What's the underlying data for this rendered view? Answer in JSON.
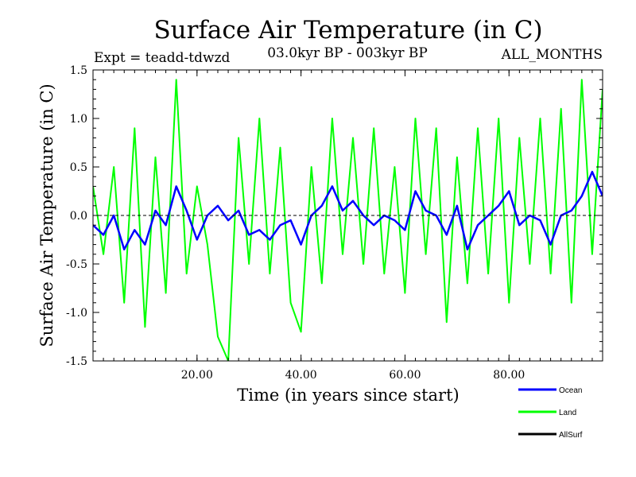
{
  "chart_data": {
    "type": "line",
    "title": "Surface Air Temperature (in C)",
    "subtitle_left": "Expt = teadd-tdwzd",
    "subtitle_center": "03.0kyr BP - 003kyr BP",
    "subtitle_right": "ALL_MONTHS",
    "xlabel": "Time (in years since start)",
    "ylabel": "Surface Air Temperature (in C)",
    "xlim": [
      0,
      98
    ],
    "ylim": [
      -1.5,
      1.5
    ],
    "x_ticks": [
      20,
      40,
      60,
      80
    ],
    "x_tick_labels": [
      "20.00",
      "40.00",
      "60.00",
      "80.00"
    ],
    "y_ticks": [
      -1.5,
      -1.0,
      -0.5,
      0.0,
      0.5,
      1.0,
      1.5
    ],
    "y_tick_labels": [
      "-1.5",
      "-1.0",
      "-0.5",
      "0.0",
      "0.5",
      "1.0",
      "1.5"
    ],
    "zero_line": 0.0,
    "series": [
      {
        "name": "Land",
        "color": "#00ff00",
        "x": [
          0,
          2,
          4,
          6,
          8,
          10,
          12,
          14,
          16,
          18,
          20,
          22,
          24,
          26,
          28,
          30,
          32,
          34,
          36,
          38,
          40,
          42,
          44,
          46,
          48,
          50,
          52,
          54,
          56,
          58,
          60,
          62,
          64,
          66,
          68,
          70,
          72,
          74,
          76,
          78,
          80,
          82,
          84,
          86,
          88,
          90,
          92,
          94,
          96,
          98
        ],
        "values": [
          0.3,
          -0.4,
          0.5,
          -0.9,
          0.9,
          -1.15,
          0.6,
          -0.8,
          1.4,
          -0.6,
          0.3,
          -0.3,
          -1.25,
          -1.5,
          0.8,
          -0.5,
          1.0,
          -0.6,
          0.7,
          -0.9,
          -1.2,
          0.5,
          -0.7,
          1.0,
          -0.4,
          0.8,
          -0.5,
          0.9,
          -0.6,
          0.5,
          -0.8,
          1.0,
          -0.4,
          0.9,
          -1.1,
          0.6,
          -0.7,
          0.9,
          -0.6,
          1.0,
          -0.9,
          0.8,
          -0.5,
          1.0,
          -0.6,
          1.1,
          -0.9,
          1.4,
          -0.4,
          1.3
        ]
      },
      {
        "name": "Ocean",
        "color": "#0000ff",
        "x": [
          0,
          2,
          4,
          6,
          8,
          10,
          12,
          14,
          16,
          18,
          20,
          22,
          24,
          26,
          28,
          30,
          32,
          34,
          36,
          38,
          40,
          42,
          44,
          46,
          48,
          50,
          52,
          54,
          56,
          58,
          60,
          62,
          64,
          66,
          68,
          70,
          72,
          74,
          76,
          78,
          80,
          82,
          84,
          86,
          88,
          90,
          92,
          94,
          96,
          98
        ],
        "values": [
          -0.1,
          -0.2,
          0.0,
          -0.35,
          -0.15,
          -0.3,
          0.05,
          -0.1,
          0.3,
          0.05,
          -0.25,
          0.0,
          0.1,
          -0.05,
          0.05,
          -0.2,
          -0.15,
          -0.25,
          -0.1,
          -0.05,
          -0.3,
          0.0,
          0.1,
          0.3,
          0.05,
          0.15,
          0.0,
          -0.1,
          0.0,
          -0.05,
          -0.15,
          0.25,
          0.05,
          0.0,
          -0.2,
          0.1,
          -0.35,
          -0.1,
          0.0,
          0.1,
          0.25,
          -0.1,
          0.0,
          -0.05,
          -0.3,
          0.0,
          0.05,
          0.2,
          0.45,
          0.2
        ]
      },
      {
        "name": "AllSurf",
        "color": "#000000",
        "x": [],
        "values": []
      }
    ],
    "legend": {
      "placement": "bottom-right",
      "entries": [
        {
          "label": "Ocean",
          "color": "#0000ff"
        },
        {
          "label": "Land",
          "color": "#00ff00"
        },
        {
          "label": "AllSurf",
          "color": "#000000"
        }
      ]
    }
  }
}
